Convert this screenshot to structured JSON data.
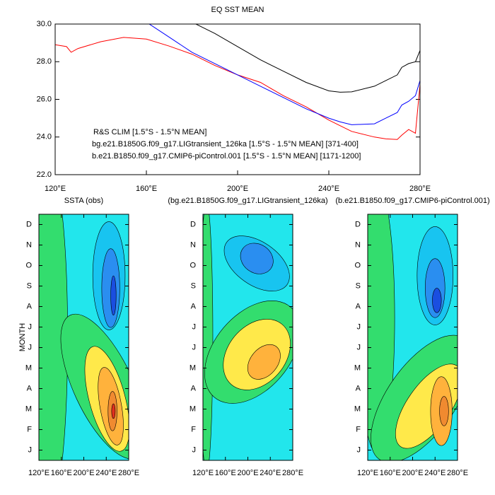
{
  "chart_data": [
    {
      "type": "line",
      "title": "EQ SST MEAN",
      "x": [
        120,
        125,
        127,
        130,
        140,
        150,
        160,
        170,
        180,
        190,
        200,
        210,
        220,
        230,
        240,
        245,
        250,
        260,
        265,
        270,
        272,
        275,
        278,
        280
      ],
      "series": [
        {
          "name": "R&S CLIM [1.5°S - 1.5°N MEAN]",
          "color": "#ff0000",
          "values": [
            28.9,
            28.8,
            28.5,
            28.7,
            29.06,
            29.29,
            29.2,
            28.83,
            28.4,
            27.8,
            27.3,
            26.9,
            26.2,
            25.6,
            24.9,
            24.6,
            24.3,
            24.0,
            23.9,
            23.87,
            24.1,
            24.4,
            24.2,
            26.8
          ]
        },
        {
          "name": "bg.e21.B1850G.f09_g17.LIGtransient_126ka [1.5°S - 1.5°N MEAN] [371-400]",
          "color": "#000000",
          "values": [
            null,
            null,
            null,
            null,
            null,
            null,
            null,
            null,
            30.1,
            29.5,
            28.8,
            28.1,
            27.5,
            26.9,
            26.45,
            26.38,
            26.4,
            26.7,
            27.0,
            27.3,
            27.7,
            27.9,
            28.0,
            28.6
          ]
        },
        {
          "name": "b.e21.B1850.f09_g17.CMIP6-piControl.001 [1.5°S - 1.5°N MEAN] [1171-1200]",
          "color": "#0000ff",
          "values": [
            null,
            null,
            null,
            null,
            null,
            null,
            30.1,
            29.3,
            28.5,
            27.9,
            27.3,
            26.7,
            26.1,
            25.5,
            25.0,
            24.8,
            24.65,
            24.7,
            25.0,
            25.3,
            25.7,
            25.9,
            26.2,
            27.0
          ]
        }
      ],
      "xlim": [
        120,
        280
      ],
      "xticks": [
        {
          "value": 120,
          "label": "120°E"
        },
        {
          "value": 160,
          "label": "160°E"
        },
        {
          "value": 200,
          "label": "200°E"
        },
        {
          "value": 240,
          "label": "240°E"
        },
        {
          "value": 280,
          "label": "280°E"
        }
      ],
      "ylim": [
        22,
        30
      ],
      "yticks": [
        {
          "value": 22,
          "label": "22.0"
        },
        {
          "value": 24,
          "label": "24.0"
        },
        {
          "value": 26,
          "label": "26.0"
        },
        {
          "value": 28,
          "label": "28.0"
        },
        {
          "value": 30,
          "label": "30.0"
        }
      ]
    },
    {
      "type": "contour",
      "title": "SSTA (obs)",
      "ylabel": "MONTH",
      "categories": [
        "J",
        "F",
        "M",
        "A",
        "M",
        "J",
        "J",
        "A",
        "S",
        "O",
        "N",
        "D"
      ],
      "xlim": [
        120,
        280
      ],
      "xticks": [
        {
          "value": 120,
          "label": "120°E"
        },
        {
          "value": 160,
          "label": "160°E"
        },
        {
          "value": 200,
          "label": "200°E"
        },
        {
          "value": 240,
          "label": "240°E"
        },
        {
          "value": 280,
          "label": "280°E"
        }
      ]
    },
    {
      "type": "contour",
      "title": "(bg.e21.B1850G.f09_g17.LIGtransient_126ka)",
      "categories": [
        "J",
        "F",
        "M",
        "A",
        "M",
        "J",
        "J",
        "A",
        "S",
        "O",
        "N",
        "D"
      ],
      "xlim": [
        120,
        280
      ],
      "xticks": [
        {
          "value": 120,
          "label": "120°E"
        },
        {
          "value": 160,
          "label": "160°E"
        },
        {
          "value": 200,
          "label": "200°E"
        },
        {
          "value": 240,
          "label": "240°E"
        },
        {
          "value": 280,
          "label": "280°E"
        }
      ]
    },
    {
      "type": "contour",
      "title": "(b.e21.B1850.f09_g17.CMIP6-piControl.001)",
      "categories": [
        "J",
        "F",
        "M",
        "A",
        "M",
        "J",
        "J",
        "A",
        "S",
        "O",
        "N",
        "D"
      ],
      "xlim": [
        120,
        280
      ],
      "xticks": [
        {
          "value": 120,
          "label": "120°E"
        },
        {
          "value": 160,
          "label": "160°E"
        },
        {
          "value": 200,
          "label": "200°E"
        },
        {
          "value": 240,
          "label": "240°E"
        },
        {
          "value": 280,
          "label": "280°E"
        }
      ]
    }
  ]
}
